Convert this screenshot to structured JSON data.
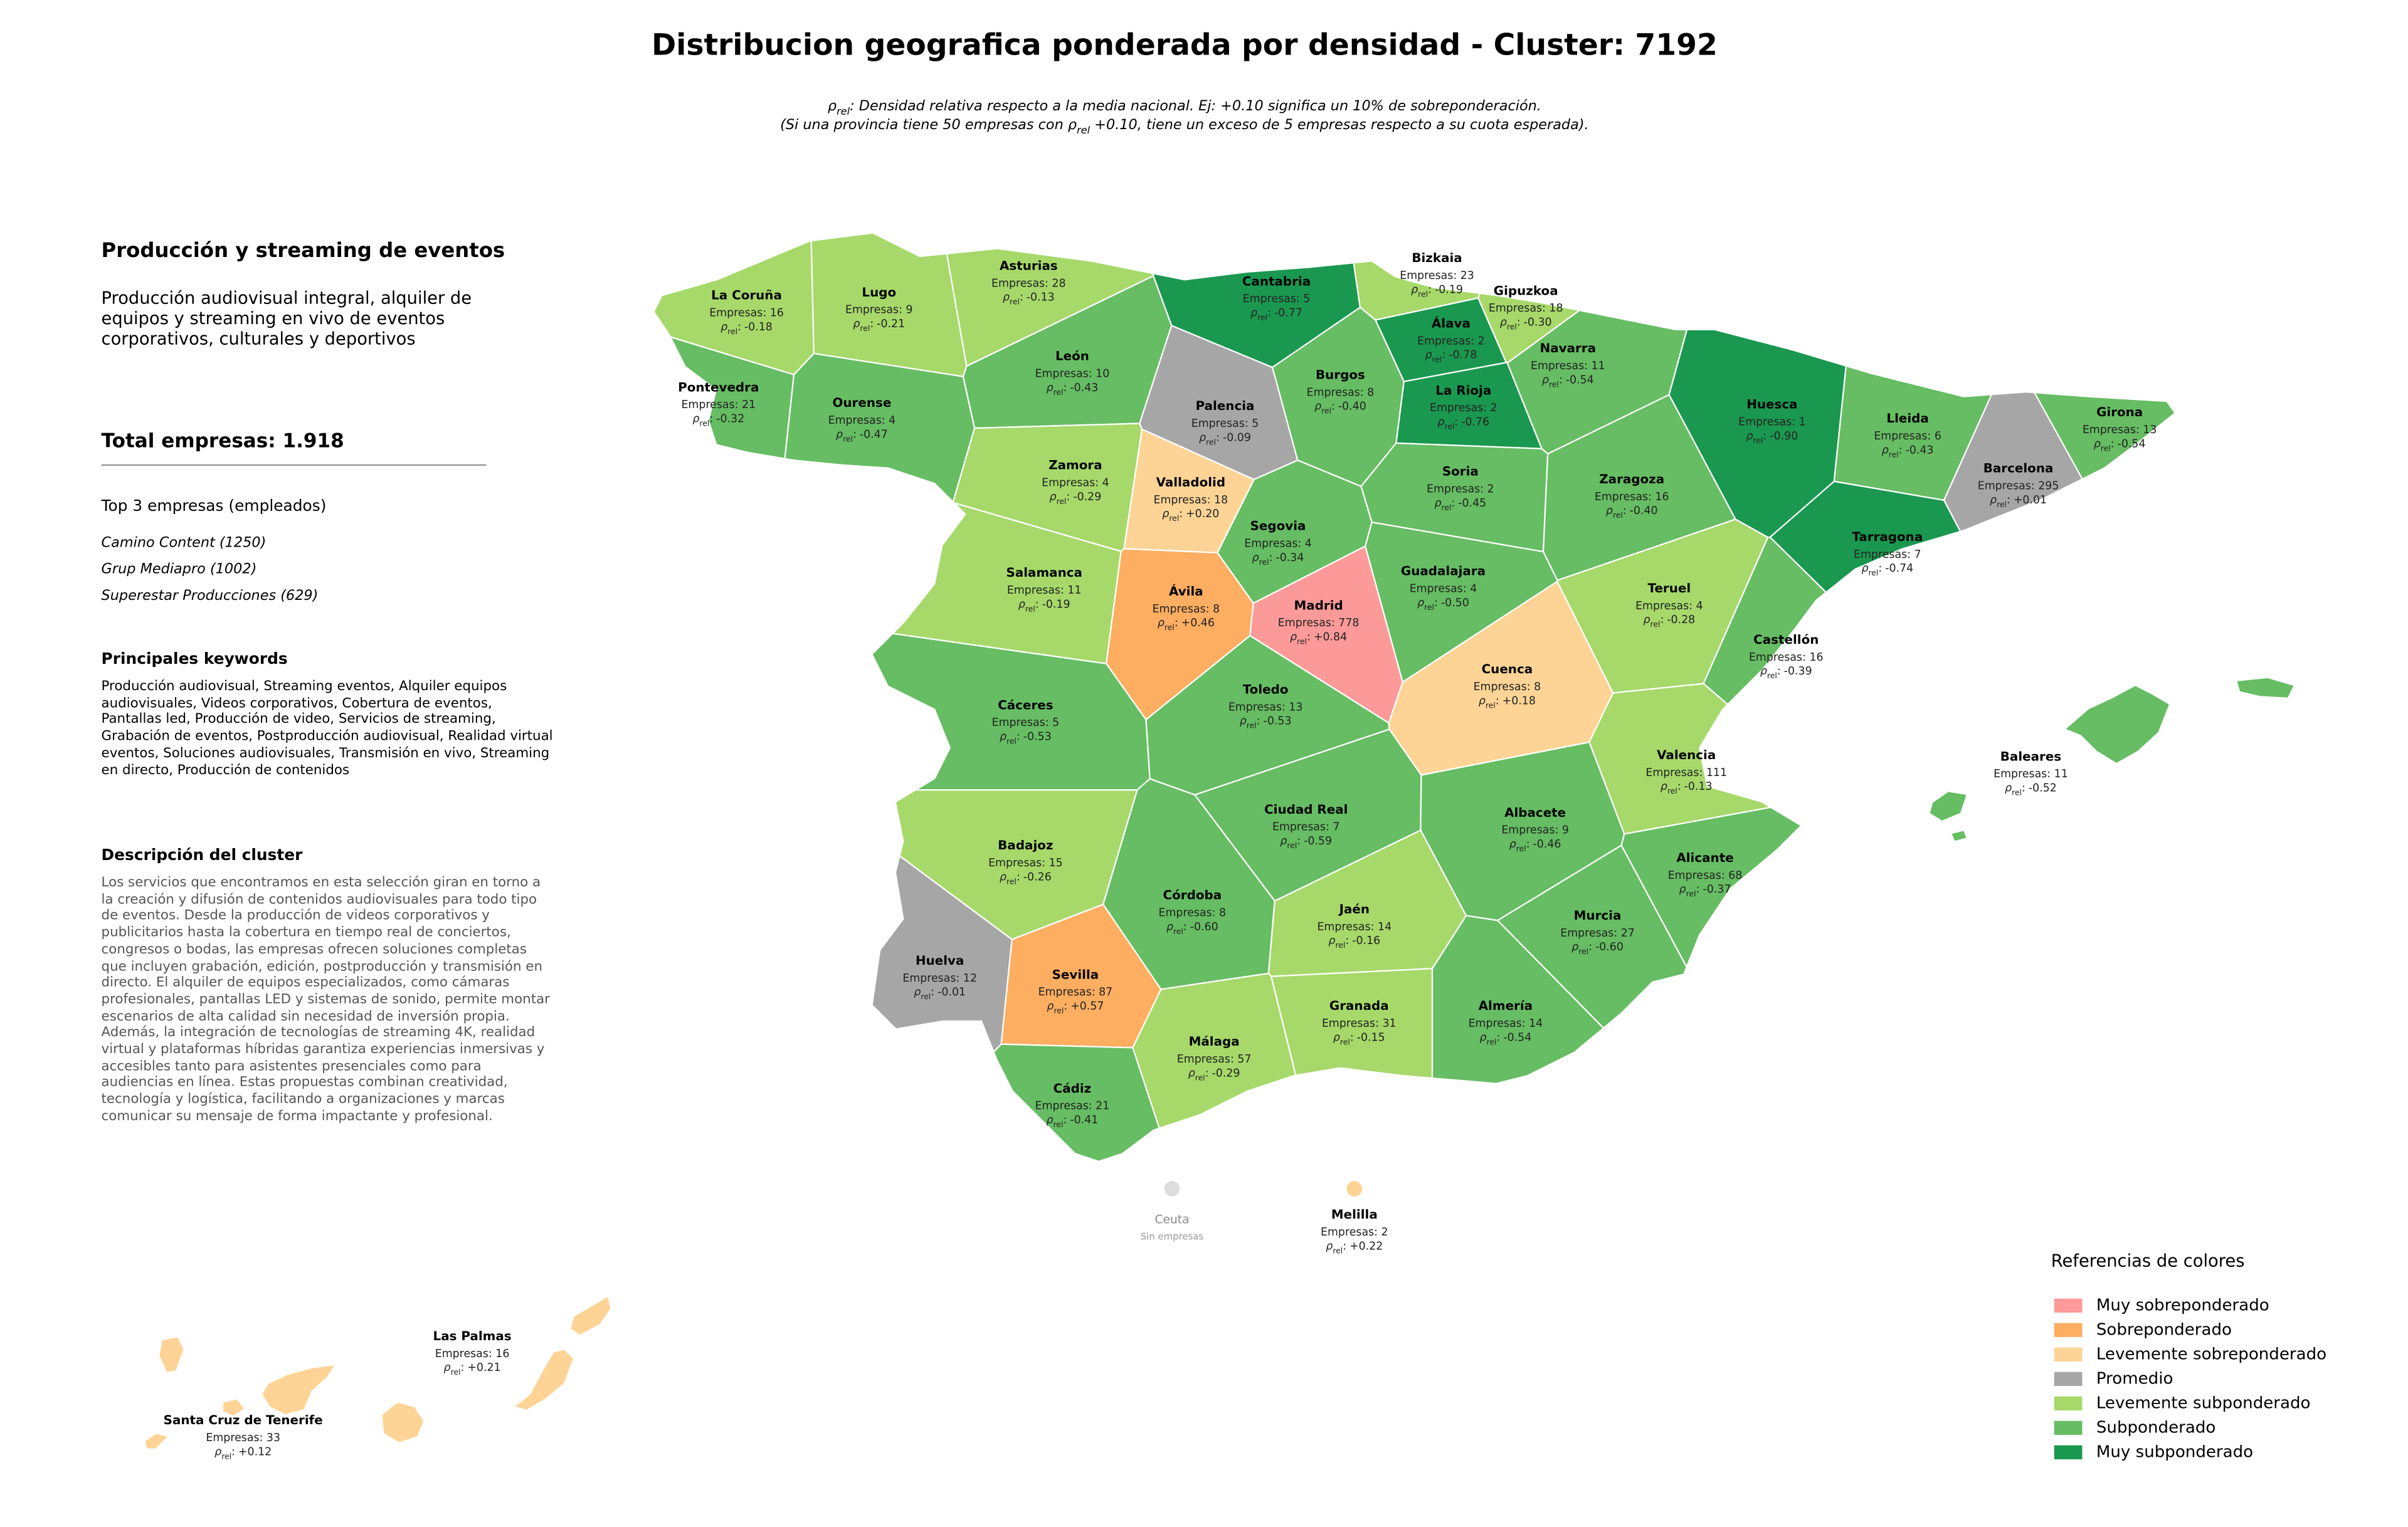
{
  "title": "Distribucion geografica ponderada por densidad - Cluster: 7192",
  "subtitle": [
    {
      "pre": "ρ",
      "sub": "rel",
      "post": ": Densidad relativa respecto a la media nacional. Ej: +0.10 significa un 10% de sobreponderación."
    },
    {
      "pre": "(Si una provincia tiene 50 empresas con ρ",
      "sub": "rel",
      "post": " +0.10, tiene un exceso de 5 empresas respecto a su cuota esperada)."
    }
  ],
  "panel": {
    "heading": "Producción y streaming de eventos",
    "summary": "Producción audiovisual integral, alquiler de equipos y streaming en vivo de eventos corporativos, culturales y deportivos",
    "total": "Total empresas: 1.918",
    "top_title": "Top 3 empresas (empleados)",
    "top": [
      "Camino Content (1250)",
      "Grup Mediapro (1002)",
      "Superestar Producciones (629)"
    ],
    "keywords_title": "Principales keywords",
    "keywords": "Producción audiovisual, Streaming eventos, Alquiler equipos audiovisuales, Videos corporativos, Cobertura de eventos, Pantallas led, Producción de video, Servicios de streaming, Grabación de eventos, Postproducción audiovisual, Realidad virtual eventos, Soluciones audiovisuales, Transmisión en vivo, Streaming en directo, Producción de contenidos",
    "description_title": "Descripción del cluster",
    "description": "Los servicios que encontramos en esta selección giran en torno a la creación y difusión de contenidos audiovisuales para todo tipo de eventos. Desde la producción de videos corporativos y publicitarios hasta la cobertura en tiempo real de conciertos, congresos o bodas, las empresas ofrecen soluciones completas que incluyen grabación, edición, postproducción y transmisión en directo. El alquiler de equipos especializados, como cámaras profesionales, pantallas LED y sistemas de sonido, permite montar escenarios de alta calidad sin necesidad de inversión propia. Además, la integración de tecnologías de streaming 4K, realidad virtual y plataformas híbridas garantiza experiencias inmersivas y accesibles tanto para asistentes presenciales como para audiencias en línea. Estas propuestas combinan creatividad, tecnología y logística, facilitando a organizaciones y marcas comunicar su mensaje de forma impactante y profesional."
  },
  "map": {
    "rho_symbol": "ρ",
    "rho_sub": "rel",
    "rho_sep": ":",
    "provinces": [
      {
        "name": "La Coruña",
        "companies": "Empresas: 16",
        "rho": "-0.18",
        "category": 4
      },
      {
        "name": "Lugo",
        "companies": "Empresas: 9",
        "rho": "-0.21",
        "category": 4
      },
      {
        "name": "Asturias",
        "companies": "Empresas: 28",
        "rho": "-0.13",
        "category": 4
      },
      {
        "name": "Cantabria",
        "companies": "Empresas: 5",
        "rho": "-0.77",
        "category": 6
      },
      {
        "name": "Bizkaia",
        "companies": "Empresas: 23",
        "rho": "-0.19",
        "category": 4
      },
      {
        "name": "Gipuzkoa",
        "companies": "Empresas: 18",
        "rho": "-0.30",
        "category": 4
      },
      {
        "name": "Álava",
        "companies": "Empresas: 2",
        "rho": "-0.78",
        "category": 6
      },
      {
        "name": "Navarra",
        "companies": "Empresas: 11",
        "rho": "-0.54",
        "category": 5
      },
      {
        "name": "Pontevedra",
        "companies": "Empresas: 21",
        "rho": "-0.32",
        "category": 5
      },
      {
        "name": "Ourense",
        "companies": "Empresas: 4",
        "rho": "-0.47",
        "category": 5
      },
      {
        "name": "León",
        "companies": "Empresas: 10",
        "rho": "-0.43",
        "category": 5
      },
      {
        "name": "Palencia",
        "companies": "Empresas: 5",
        "rho": "-0.09",
        "category": 3
      },
      {
        "name": "Burgos",
        "companies": "Empresas: 8",
        "rho": "-0.40",
        "category": 5
      },
      {
        "name": "La Rioja",
        "companies": "Empresas: 2",
        "rho": "-0.76",
        "category": 6
      },
      {
        "name": "Huesca",
        "companies": "Empresas: 1",
        "rho": "-0.90",
        "category": 6
      },
      {
        "name": "Lleida",
        "companies": "Empresas: 6",
        "rho": "-0.43",
        "category": 5
      },
      {
        "name": "Girona",
        "companies": "Empresas: 13",
        "rho": "-0.54",
        "category": 5
      },
      {
        "name": "Barcelona",
        "companies": "Empresas: 295",
        "rho": "+0.01",
        "category": 3
      },
      {
        "name": "Zamora",
        "companies": "Empresas: 4",
        "rho": "-0.29",
        "category": 4
      },
      {
        "name": "Valladolid",
        "companies": "Empresas: 18",
        "rho": "+0.20",
        "category": 2
      },
      {
        "name": "Soria",
        "companies": "Empresas: 2",
        "rho": "-0.45",
        "category": 5
      },
      {
        "name": "Zaragoza",
        "companies": "Empresas: 16",
        "rho": "-0.40",
        "category": 5
      },
      {
        "name": "Tarragona",
        "companies": "Empresas: 7",
        "rho": "-0.74",
        "category": 6
      },
      {
        "name": "Segovia",
        "companies": "Empresas: 4",
        "rho": "-0.34",
        "category": 5
      },
      {
        "name": "Salamanca",
        "companies": "Empresas: 11",
        "rho": "-0.19",
        "category": 4
      },
      {
        "name": "Ávila",
        "companies": "Empresas: 8",
        "rho": "+0.46",
        "category": 1
      },
      {
        "name": "Madrid",
        "companies": "Empresas: 778",
        "rho": "+0.84",
        "category": 0
      },
      {
        "name": "Guadalajara",
        "companies": "Empresas: 4",
        "rho": "-0.50",
        "category": 5
      },
      {
        "name": "Teruel",
        "companies": "Empresas: 4",
        "rho": "-0.28",
        "category": 4
      },
      {
        "name": "Castellón",
        "companies": "Empresas: 16",
        "rho": "-0.39",
        "category": 5
      },
      {
        "name": "Cáceres",
        "companies": "Empresas: 5",
        "rho": "-0.53",
        "category": 5
      },
      {
        "name": "Toledo",
        "companies": "Empresas: 13",
        "rho": "-0.53",
        "category": 5
      },
      {
        "name": "Cuenca",
        "companies": "Empresas: 8",
        "rho": "+0.18",
        "category": 2
      },
      {
        "name": "Valencia",
        "companies": "Empresas: 111",
        "rho": "-0.13",
        "category": 4
      },
      {
        "name": "Badajoz",
        "companies": "Empresas: 15",
        "rho": "-0.26",
        "category": 4
      },
      {
        "name": "Ciudad Real",
        "companies": "Empresas: 7",
        "rho": "-0.59",
        "category": 5
      },
      {
        "name": "Albacete",
        "companies": "Empresas: 9",
        "rho": "-0.46",
        "category": 5
      },
      {
        "name": "Alicante",
        "companies": "Empresas: 68",
        "rho": "-0.37",
        "category": 5
      },
      {
        "name": "Córdoba",
        "companies": "Empresas: 8",
        "rho": "-0.60",
        "category": 5
      },
      {
        "name": "Jaén",
        "companies": "Empresas: 14",
        "rho": "-0.16",
        "category": 4
      },
      {
        "name": "Murcia",
        "companies": "Empresas: 27",
        "rho": "-0.60",
        "category": 5
      },
      {
        "name": "Huelva",
        "companies": "Empresas: 12",
        "rho": "-0.01",
        "category": 3
      },
      {
        "name": "Sevilla",
        "companies": "Empresas: 87",
        "rho": "+0.57",
        "category": 1
      },
      {
        "name": "Granada",
        "companies": "Empresas: 31",
        "rho": "-0.15",
        "category": 4
      },
      {
        "name": "Almería",
        "companies": "Empresas: 14",
        "rho": "-0.54",
        "category": 5
      },
      {
        "name": "Málaga",
        "companies": "Empresas: 57",
        "rho": "-0.29",
        "category": 4
      },
      {
        "name": "Cádiz",
        "companies": "Empresas: 21",
        "rho": "-0.41",
        "category": 5
      },
      {
        "name": "Baleares",
        "companies": "Empresas: 11",
        "rho": "-0.52",
        "category": 5
      },
      {
        "name": "Las Palmas",
        "companies": "Empresas: 16",
        "rho": "+0.21",
        "category": 2
      },
      {
        "name": "Santa Cruz de Tenerife",
        "companies": "Empresas: 33",
        "rho": "+0.12",
        "category": 2
      },
      {
        "name": "Melilla",
        "companies": "Empresas: 2",
        "rho": "+0.22",
        "category": 2
      },
      {
        "name": "Ceuta",
        "companies": "Sin empresas"
      }
    ],
    "legend": {
      "title": "Referencias de colores",
      "items": [
        {
          "label": "Muy sobreponderado",
          "color": "#fb9a99"
        },
        {
          "label": "Sobreponderado",
          "color": "#fdae61"
        },
        {
          "label": "Levemente sobreponderado",
          "color": "#fdd495"
        },
        {
          "label": "Promedio",
          "color": "#a6a6a6"
        },
        {
          "label": "Levemente subponderado",
          "color": "#a6d96a"
        },
        {
          "label": "Subponderado",
          "color": "#66bd63"
        },
        {
          "label": "Muy subponderado",
          "color": "#1a9850"
        }
      ]
    }
  }
}
